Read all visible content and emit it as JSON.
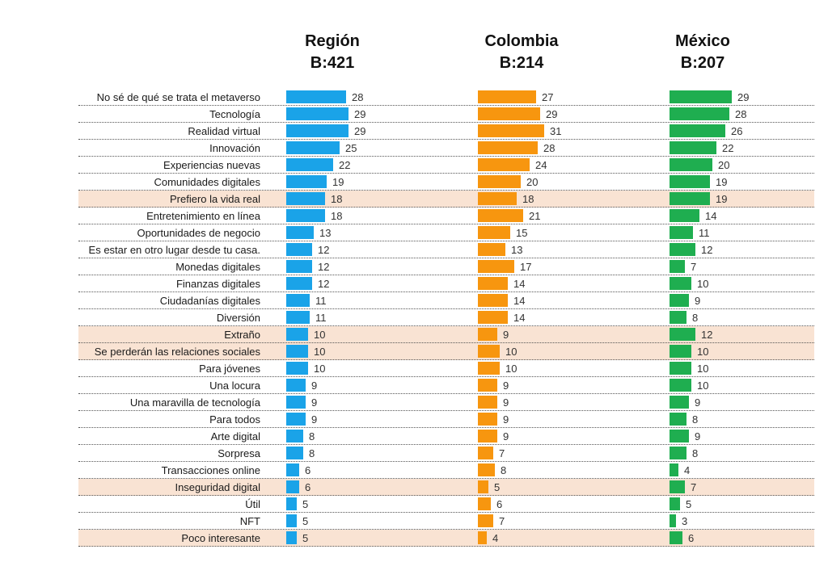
{
  "chart_data": {
    "type": "bar",
    "orientation": "horizontal",
    "title": "",
    "xlabel": "",
    "ylabel": "",
    "categories": [
      "No sé de qué se trata el metaverso",
      "Tecnología",
      "Realidad virtual",
      "Innovación",
      "Experiencias nuevas",
      "Comunidades digitales",
      "Prefiero la vida real",
      "Entretenimiento en línea",
      "Oportunidades de negocio",
      "Es estar en otro lugar desde tu casa.",
      "Monedas digitales",
      "Finanzas digitales",
      "Ciudadanías digitales",
      "Diversión",
      "Extraño",
      "Se perderán las relaciones sociales",
      "Para jóvenes",
      "Una locura",
      "Una maravilla de tecnología",
      "Para todos",
      "Arte digital",
      "Sorpresa",
      "Transacciones online",
      "Inseguridad digital",
      "Útil",
      "NFT",
      "Poco interesante"
    ],
    "highlighted": [
      "Prefiero la vida real",
      "Extraño",
      "Se perderán las relaciones sociales",
      "Inseguridad digital",
      "Poco interesante"
    ],
    "series": [
      {
        "name": "Región",
        "base": "B:421",
        "color": "#1aa3e8",
        "values": [
          28,
          29,
          29,
          25,
          22,
          19,
          18,
          18,
          13,
          12,
          12,
          12,
          11,
          11,
          10,
          10,
          10,
          9,
          9,
          9,
          8,
          8,
          6,
          6,
          5,
          5,
          5
        ]
      },
      {
        "name": "Colombia",
        "base": "B:214",
        "color": "#f7960f",
        "values": [
          27,
          29,
          31,
          28,
          24,
          20,
          18,
          21,
          15,
          13,
          17,
          14,
          14,
          14,
          9,
          10,
          10,
          9,
          9,
          9,
          9,
          7,
          8,
          5,
          6,
          7,
          4
        ]
      },
      {
        "name": "México",
        "base": "B:207",
        "color": "#1fae50",
        "values": [
          29,
          28,
          26,
          22,
          20,
          19,
          19,
          14,
          11,
          12,
          7,
          10,
          9,
          8,
          12,
          10,
          10,
          10,
          9,
          8,
          9,
          8,
          4,
          7,
          5,
          3,
          6
        ]
      }
    ]
  }
}
